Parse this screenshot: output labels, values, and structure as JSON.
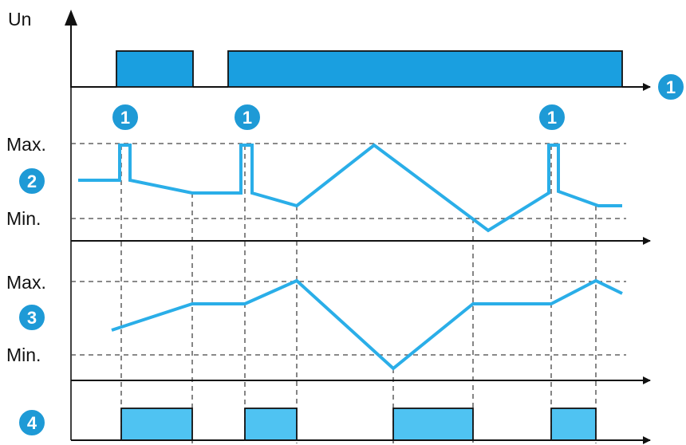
{
  "labels": {
    "un": "Un",
    "panel2_max": "Max.",
    "panel2_min": "Min.",
    "panel3_max": "Max.",
    "panel3_min": "Min."
  },
  "badges": {
    "b1": "1",
    "b2": "2",
    "b3": "3",
    "b4": "4"
  },
  "colors": {
    "accent": "#2aaee8",
    "badge_fill": "#1e9ad6",
    "pulse_fill_top": "#1a9fe0",
    "pulse_fill_bottom": "#4fc3f2",
    "line": "#111111"
  }
}
